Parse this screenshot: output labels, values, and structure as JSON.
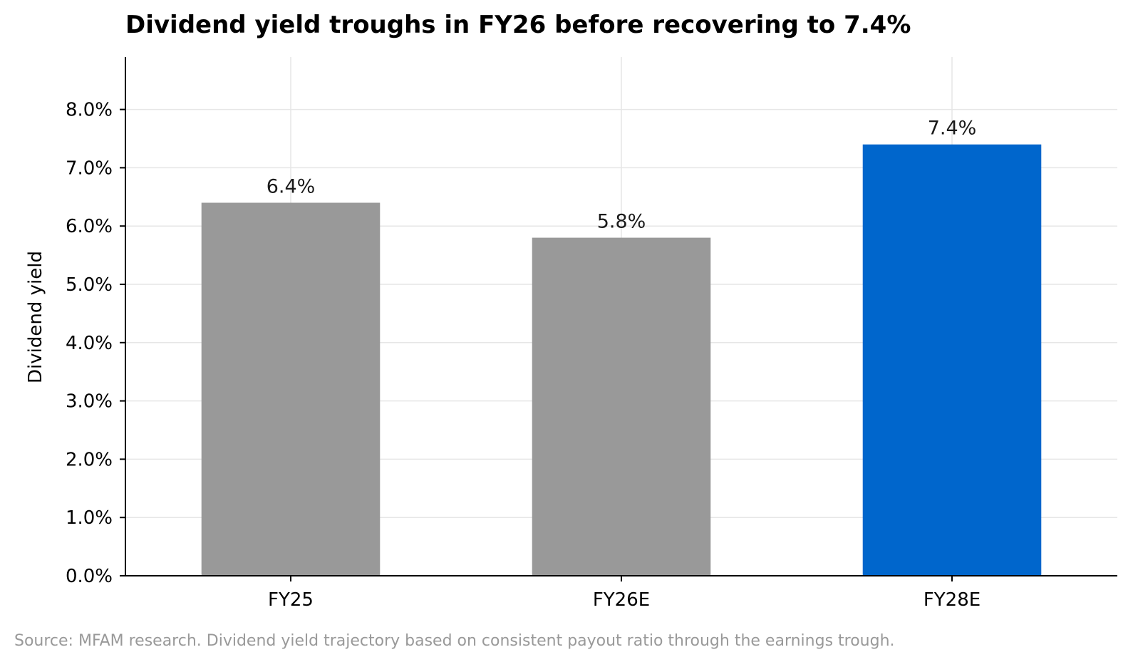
{
  "chart_data": {
    "type": "bar",
    "title": "Dividend yield troughs in FY26 before recovering to 7.4%",
    "xlabel": "",
    "ylabel": "Dividend yield",
    "categories": [
      "FY25",
      "FY26E",
      "FY28E"
    ],
    "values": [
      6.4,
      5.8,
      7.4
    ],
    "data_labels": [
      "6.4%",
      "5.8%",
      "7.4%"
    ],
    "bar_colors": [
      "#999999",
      "#999999",
      "#0066CC"
    ],
    "ylim": [
      0,
      8.9
    ],
    "yticks": [
      0,
      1,
      2,
      3,
      4,
      5,
      6,
      7,
      8
    ],
    "ytick_labels": [
      "0.0%",
      "1.0%",
      "2.0%",
      "3.0%",
      "4.0%",
      "5.0%",
      "6.0%",
      "7.0%",
      "8.0%"
    ],
    "grid": true,
    "grid_color": "#e6e6e6",
    "axis_color": "#000000"
  },
  "footer": {
    "source": "Source: MFAM research. Dividend yield trajectory based on consistent payout ratio through the earnings trough."
  }
}
